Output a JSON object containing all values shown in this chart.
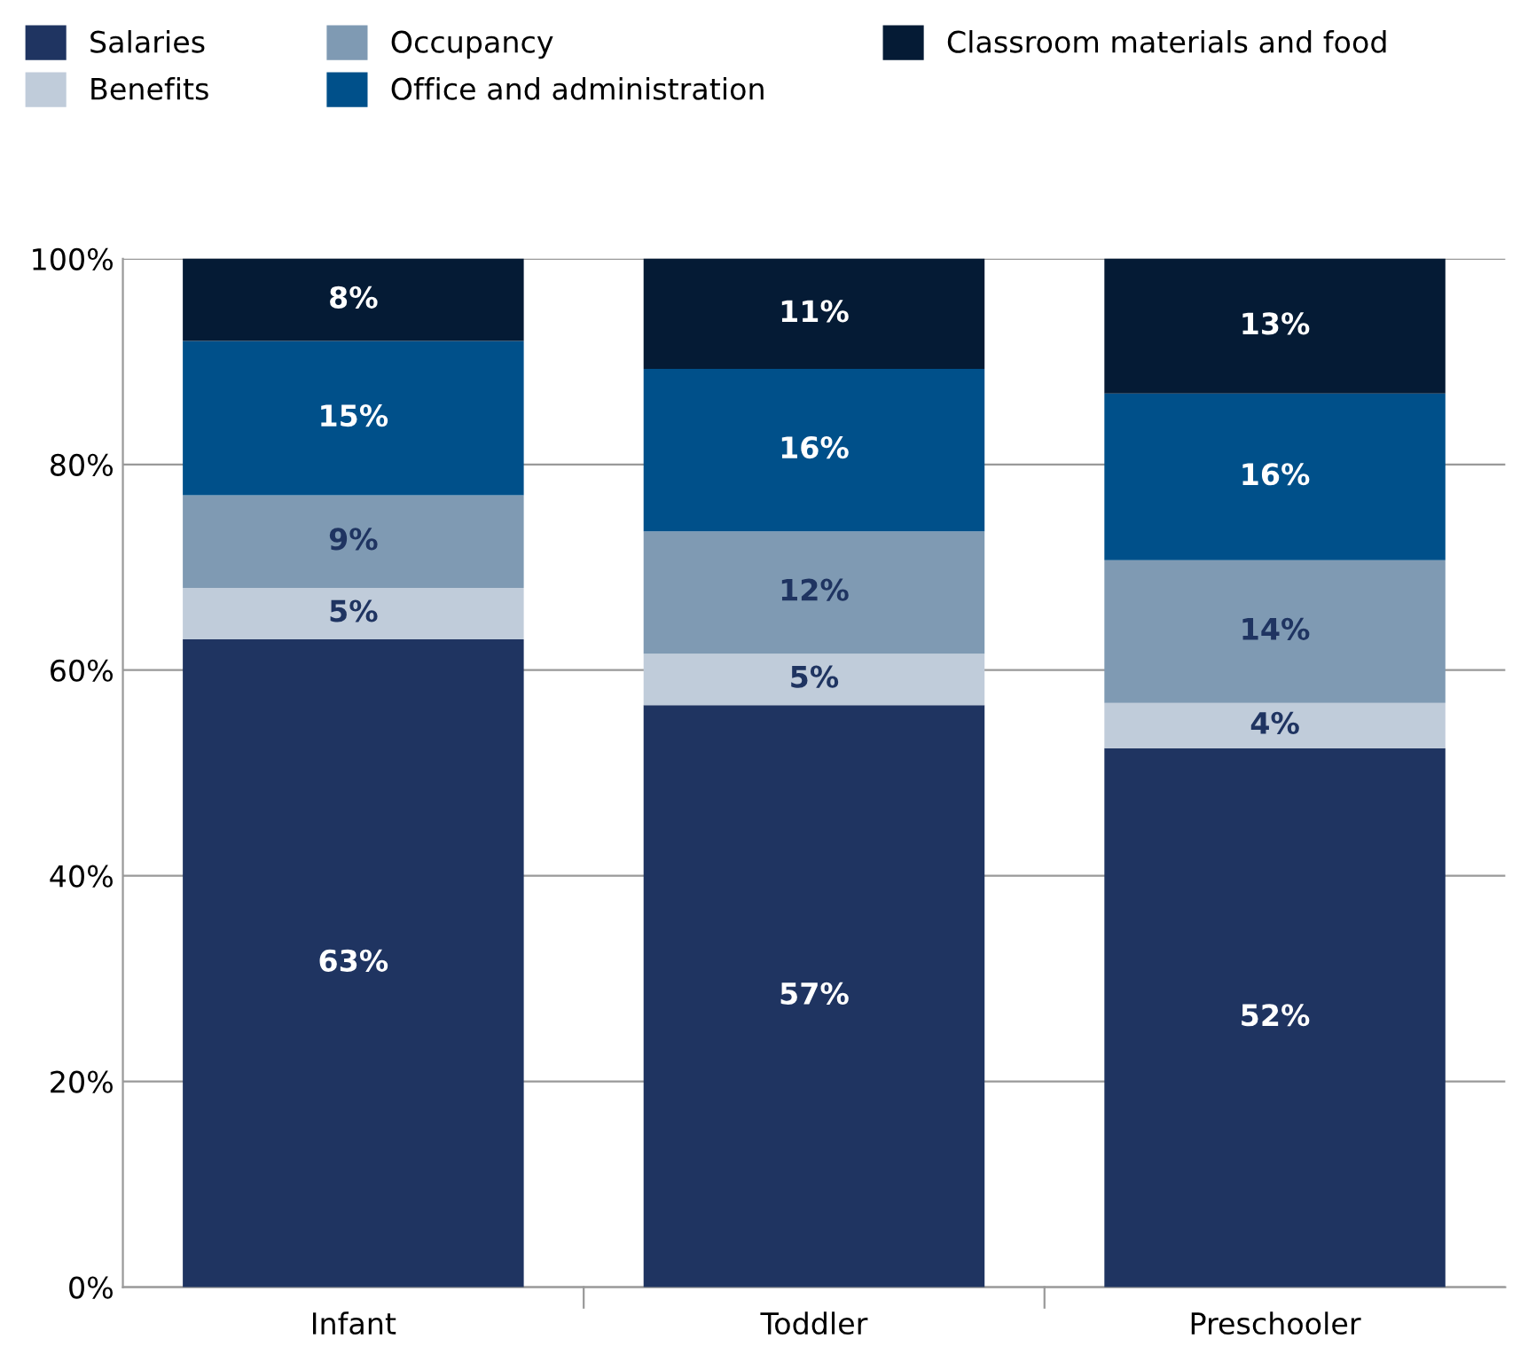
{
  "chart_data": {
    "type": "bar",
    "stacked": true,
    "categories": [
      "Infant",
      "Toddler",
      "Preschooler"
    ],
    "series": [
      {
        "name": "Salaries",
        "color": "#1f3461",
        "values": [
          63,
          56.6,
          52.4
        ],
        "value_labels": [
          "63%",
          "57%",
          "52%"
        ]
      },
      {
        "name": "Benefits",
        "color": "#c0ccda",
        "values": [
          5,
          5,
          4.4
        ],
        "value_labels": [
          "5%",
          "5%",
          "4%"
        ]
      },
      {
        "name": "Occupancy",
        "color": "#7f9ab3",
        "values": [
          9,
          11.9,
          13.9
        ],
        "value_labels": [
          "9%",
          "12%",
          "14%"
        ]
      },
      {
        "name": "Office and administration",
        "color": "#00508a",
        "values": [
          15,
          15.8,
          16.2
        ],
        "value_labels": [
          "15%",
          "16%",
          "16%"
        ]
      },
      {
        "name": "Classroom materials and food",
        "color": "#051b35",
        "values": [
          8,
          10.7,
          13.1
        ],
        "value_labels": [
          "8%",
          "11%",
          "13%"
        ]
      }
    ],
    "ylim": [
      0,
      100
    ],
    "yticks": [
      {
        "value": 0,
        "label": "0%"
      },
      {
        "value": 20,
        "label": "20%"
      },
      {
        "value": 40,
        "label": "40%"
      },
      {
        "value": 60,
        "label": "60%"
      },
      {
        "value": 80,
        "label": "80%"
      },
      {
        "value": 100,
        "label": "100%"
      }
    ],
    "grid": "y",
    "legend": "top"
  }
}
